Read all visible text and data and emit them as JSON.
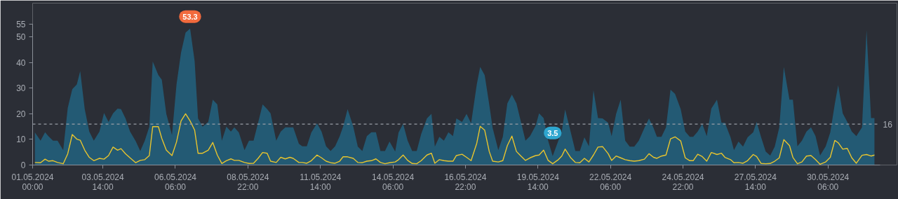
{
  "chart_data": {
    "type": "area",
    "x": [
      "2024-05-01T02:00",
      "2024-05-01T07:00",
      "2024-05-01T11:00",
      "2024-05-01T14:00",
      "2024-05-01T18:00",
      "2024-05-01T22:00",
      "2024-05-02T03:00",
      "2024-05-02T07:00",
      "2024-05-02T11:00",
      "2024-05-02T15:00",
      "2024-05-02T18:00",
      "2024-05-02T22:00",
      "2024-05-03T02:00",
      "2024-05-03T06:00",
      "2024-05-03T11:00",
      "2024-05-03T15:00",
      "2024-05-03T19:00",
      "2024-05-03T23:00",
      "2024-05-04T03:00",
      "2024-05-04T06:00",
      "2024-05-04T10:00",
      "2024-05-04T14:00",
      "2024-05-04T19:00",
      "2024-05-04T23:00",
      "2024-05-05T03:00",
      "2024-05-05T07:00",
      "2024-05-05T10:00",
      "2024-05-05T15:00",
      "2024-05-05T18:00",
      "2024-05-05T22:00",
      "2024-05-06T03:00",
      "2024-05-06T07:00",
      "2024-05-06T11:00",
      "2024-05-06T15:00",
      "2024-05-06T19:00",
      "2024-05-06T23:00",
      "2024-05-07T02:00",
      "2024-05-07T06:00",
      "2024-05-07T11:00",
      "2024-05-07T15:00",
      "2024-05-07T19:00",
      "2024-05-07T23:00",
      "2024-05-08T03:00",
      "2024-05-08T07:00",
      "2024-05-08T10:00",
      "2024-05-08T14:00",
      "2024-05-08T19:00",
      "2024-05-08T23:00",
      "2024-05-09T03:00",
      "2024-05-09T07:00",
      "2024-05-09T11:00",
      "2024-05-09T15:00",
      "2024-05-09T18:00",
      "2024-05-09T23:00",
      "2024-05-10T03:00",
      "2024-05-10T07:00",
      "2024-05-10T11:00",
      "2024-05-10T14:00",
      "2024-05-10T19:00",
      "2024-05-10T22:00",
      "2024-05-11T02:00",
      "2024-05-11T06:00",
      "2024-05-11T11:00",
      "2024-05-11T15:00",
      "2024-05-11T19:00",
      "2024-05-11T23:00",
      "2024-05-12T03:00",
      "2024-05-12T07:00",
      "2024-05-12T10:00",
      "2024-05-12T14:00",
      "2024-05-12T19:00",
      "2024-05-12T23:00",
      "2024-05-13T03:00",
      "2024-05-13T07:00",
      "2024-05-13T11:00",
      "2024-05-13T15:00",
      "2024-05-13T19:00",
      "2024-05-13T23:00",
      "2024-05-14T03:00",
      "2024-05-14T08:00",
      "2024-05-14T11:00",
      "2024-05-14T15:00",
      "2024-05-14T19:00",
      "2024-05-14T23:00",
      "2024-05-15T03:00",
      "2024-05-15T07:00",
      "2024-05-15T12:00",
      "2024-05-15T16:00",
      "2024-05-15T19:00",
      "2024-05-15T23:00",
      "2024-05-16T03:00",
      "2024-05-16T07:00",
      "2024-05-16T11:00",
      "2024-05-16T14:00",
      "2024-05-16T19:00",
      "2024-05-16T23:00",
      "2024-05-17T03:00",
      "2024-05-17T08:00",
      "2024-05-17T11:00",
      "2024-05-17T15:00",
      "2024-05-17T19:00",
      "2024-05-17T22:00",
      "2024-05-18T03:00",
      "2024-05-18T07:00",
      "2024-05-18T11:00",
      "2024-05-18T15:00",
      "2024-05-18T19:00",
      "2024-05-18T23:00",
      "2024-05-19T03:00",
      "2024-05-19T07:00",
      "2024-05-19T12:00",
      "2024-05-19T15:00",
      "2024-05-19T19:00",
      "2024-05-19T23:00",
      "2024-05-20T03:00",
      "2024-05-20T08:00",
      "2024-05-20T11:00",
      "2024-05-20T14:00",
      "2024-05-20T19:00",
      "2024-05-20T23:00",
      "2024-05-21T03:00",
      "2024-05-21T07:00",
      "2024-05-21T11:00",
      "2024-05-21T15:00",
      "2024-05-21T19:00",
      "2024-05-21T23:00",
      "2024-05-22T04:00",
      "2024-05-22T07:00",
      "2024-05-22T11:00",
      "2024-05-22T15:00",
      "2024-05-22T19:00",
      "2024-05-22T23:00",
      "2024-05-23T03:00",
      "2024-05-23T07:00",
      "2024-05-23T12:00",
      "2024-05-23T16:00",
      "2024-05-23T20:00",
      "2024-05-23T23:00",
      "2024-05-24T03:00",
      "2024-05-24T07:00",
      "2024-05-24T11:00",
      "2024-05-24T15:00",
      "2024-05-24T20:00",
      "2024-05-25T00:00",
      "2024-05-25T04:00",
      "2024-05-25T07:00",
      "2024-05-25T11:00",
      "2024-05-25T15:00",
      "2024-05-25T19:00",
      "2024-05-25T23:00",
      "2024-05-26T04:00",
      "2024-05-26T08:00",
      "2024-05-26T11:00",
      "2024-05-26T16:00",
      "2024-05-26T19:00",
      "2024-05-26T23:00",
      "2024-05-27T03:00",
      "2024-05-27T07:00",
      "2024-05-27T12:00",
      "2024-05-27T15:00",
      "2024-05-27T19:00",
      "2024-05-27T23:00",
      "2024-05-28T03:00",
      "2024-05-28T07:00",
      "2024-05-28T11:00",
      "2024-05-28T15:00",
      "2024-05-28T20:00",
      "2024-05-28T23:00",
      "2024-05-29T03:00",
      "2024-05-29T07:00",
      "2024-05-29T11:00",
      "2024-05-29T15:00",
      "2024-05-29T19:00",
      "2024-05-29T23:00",
      "2024-05-30T04:00",
      "2024-05-30T08:00",
      "2024-05-30T12:00",
      "2024-05-30T15:00",
      "2024-05-30T19:00",
      "2024-05-30T23:00",
      "2024-05-31T03:00",
      "2024-05-31T07:00",
      "2024-05-31T12:00",
      "2024-05-31T16:00",
      "2024-05-31T20:00",
      "2024-05-31T23:00"
    ],
    "series": [
      {
        "color": "#235a74",
        "values": [
          12.7,
          9.5,
          12.8,
          11.2,
          9.5,
          9.5,
          5.8,
          22.3,
          29.6,
          31.5,
          36.7,
          21.8,
          13.1,
          9.5,
          13.1,
          20.3,
          16.8,
          20.2,
          22,
          21.8,
          18.2,
          13.1,
          9.3,
          5.5,
          9.5,
          15,
          40.4,
          35.1,
          33.3,
          20,
          11.7,
          31.5,
          43.9,
          51.7,
          53.3,
          40.6,
          18.2,
          15,
          16.8,
          25.5,
          23.7,
          9.5,
          15,
          13.1,
          14.7,
          12.7,
          5.8,
          9.5,
          9.5,
          16.5,
          23.7,
          21.8,
          20.2,
          9.5,
          13.1,
          14.7,
          14.7,
          14.7,
          8.3,
          7.3,
          7.3,
          12.7,
          16.3,
          13.1,
          7.3,
          5.5,
          7.3,
          11.2,
          15,
          21.8,
          15,
          7.2,
          5.5,
          11.3,
          12.8,
          12.8,
          5.5,
          5.5,
          9.2,
          5.3,
          12.7,
          16.1,
          9.5,
          5.5,
          5.5,
          12.2,
          18.2,
          20,
          7.2,
          11,
          9.5,
          12.8,
          11.3,
          18.2,
          16.8,
          20,
          16.3,
          31.5,
          38.3,
          35.1,
          23.7,
          14.5,
          5.8,
          11,
          24.1,
          27.5,
          24.1,
          16.8,
          9.5,
          11.3,
          15.4,
          20.2,
          18.3,
          9.5,
          3.5,
          9.5,
          13.1,
          21.7,
          12.7,
          5.5,
          5.5,
          10.8,
          7.3,
          29.2,
          18.3,
          18.2,
          16.5,
          11.3,
          20,
          25.5,
          9.5,
          7.2,
          7.2,
          9.5,
          14.5,
          18.2,
          14.5,
          11,
          11,
          14.7,
          29.4,
          27.8,
          21.8,
          13.1,
          11,
          11,
          13.1,
          16.1,
          11.3,
          22,
          25.5,
          16.5,
          16.5,
          10.8,
          5.8,
          9.2,
          7.2,
          10.8,
          12.8,
          16.8,
          10.8,
          5.3,
          3.7,
          7.2,
          14.7,
          38.3,
          25.5,
          25.5,
          7.3,
          9.5,
          13.1,
          14.7,
          11.3,
          3.7,
          7.3,
          12.7,
          23.9,
          31.2,
          20.2,
          16.8,
          13.1,
          11.3,
          14.7,
          52.7,
          18.3,
          18.3
        ]
      },
      {
        "type": "line",
        "color": "#e8c42e",
        "values": [
          1.0,
          0.9,
          2.3,
          1.5,
          1.7,
          1.0,
          0.5,
          4.4,
          11.9,
          10.1,
          9.7,
          5.8,
          3.0,
          1.7,
          2.6,
          2.3,
          3.7,
          7.0,
          5.8,
          6.4,
          4.4,
          2.8,
          0.9,
          1.8,
          2.1,
          3.7,
          15,
          15,
          10.4,
          5.8,
          3.7,
          9,
          17.2,
          20,
          17.2,
          13.6,
          4.6,
          4.6,
          5.8,
          8.8,
          3.9,
          0.6,
          1.7,
          2.4,
          1.8,
          1.8,
          1.0,
          0.6,
          0.7,
          2.6,
          4.9,
          4.6,
          1.5,
          1.0,
          3.0,
          2.4,
          3.0,
          2.6,
          1.0,
          1.0,
          0.7,
          1.7,
          3.9,
          2.8,
          1.5,
          0.9,
          0.7,
          1.5,
          3.2,
          3.2,
          2.6,
          1.0,
          0.9,
          1.5,
          1.7,
          2.4,
          1.0,
          0.5,
          0.9,
          1.2,
          2.1,
          3.9,
          1.8,
          0.6,
          0.5,
          1.7,
          3.9,
          4.6,
          0.7,
          2.1,
          1.7,
          1.5,
          1.5,
          3.7,
          4.2,
          3.0,
          1.7,
          8.5,
          15.1,
          13.6,
          5.3,
          1.5,
          1.2,
          1.7,
          7.6,
          11.3,
          5.3,
          3.5,
          1.8,
          2.8,
          3.7,
          3.9,
          5.8,
          1.8,
          0.5,
          2.1,
          3.5,
          6.2,
          2.8,
          1.0,
          0.9,
          2.6,
          1.2,
          3.9,
          7.0,
          7.2,
          4.4,
          1.8,
          3.5,
          2.8,
          2.1,
          1.7,
          1.5,
          1.7,
          2.3,
          4.4,
          3.0,
          2.6,
          3.5,
          3.9,
          10.2,
          11,
          9.4,
          2.8,
          1.7,
          1.7,
          4.2,
          3.3,
          1.5,
          4.9,
          4.1,
          4.6,
          3.0,
          2.1,
          0.9,
          1.0,
          0.7,
          1.7,
          4.1,
          3.3,
          0.6,
          0.5,
          0.6,
          1.5,
          2.8,
          9.9,
          7.6,
          3.0,
          0.5,
          1.2,
          3.5,
          3.7,
          2.1,
          0.3,
          1.2,
          3.0,
          9.6,
          8.7,
          6.2,
          6.5,
          2.8,
          0.7,
          3.8,
          4.1,
          3.5,
          3.9
        ]
      }
    ],
    "xlim": [
      "2024-05-01T00:00",
      "2024-06-01T04:00"
    ],
    "xticks": [
      {
        "value": "2024-05-01T00:00",
        "label": "01.05.2024\n00:00"
      },
      {
        "value": "2024-05-03T14:00",
        "label": "03.05.2024\n14:00"
      },
      {
        "value": "2024-05-06T06:00",
        "label": "06.05.2024\n06:00"
      },
      {
        "value": "2024-05-08T22:00",
        "label": "08.05.2024\n22:00"
      },
      {
        "value": "2024-05-11T14:00",
        "label": "11.05.2024\n14:00"
      },
      {
        "value": "2024-05-14T06:00",
        "label": "14.05.2024\n06:00"
      },
      {
        "value": "2024-05-16T22:00",
        "label": "16.05.2024\n22:00"
      },
      {
        "value": "2024-05-19T14:00",
        "label": "19.05.2024\n14:00"
      },
      {
        "value": "2024-05-22T06:00",
        "label": "22.05.2024\n06:00"
      },
      {
        "value": "2024-05-24T22:00",
        "label": "24.05.2024\n22:00"
      },
      {
        "value": "2024-05-27T14:00",
        "label": "27.05.2024\n14:00"
      },
      {
        "value": "2024-05-30T06:00",
        "label": "30.05.2024\n06:00"
      }
    ],
    "ylim": [
      0,
      55
    ],
    "yticks": [
      0,
      10,
      20,
      30,
      40,
      50,
      55
    ],
    "ref_lines": [
      {
        "axis": "y",
        "value": 16,
        "label": "16",
        "color": "#9a9ea6",
        "line_style": "dashed"
      }
    ],
    "annotations": [
      {
        "text": "53.3",
        "x": "2024-05-06T19:00",
        "y": 53.3
      },
      {
        "text": "3.5",
        "x": "2024-05-20T03:00",
        "y": 3.5
      }
    ]
  }
}
